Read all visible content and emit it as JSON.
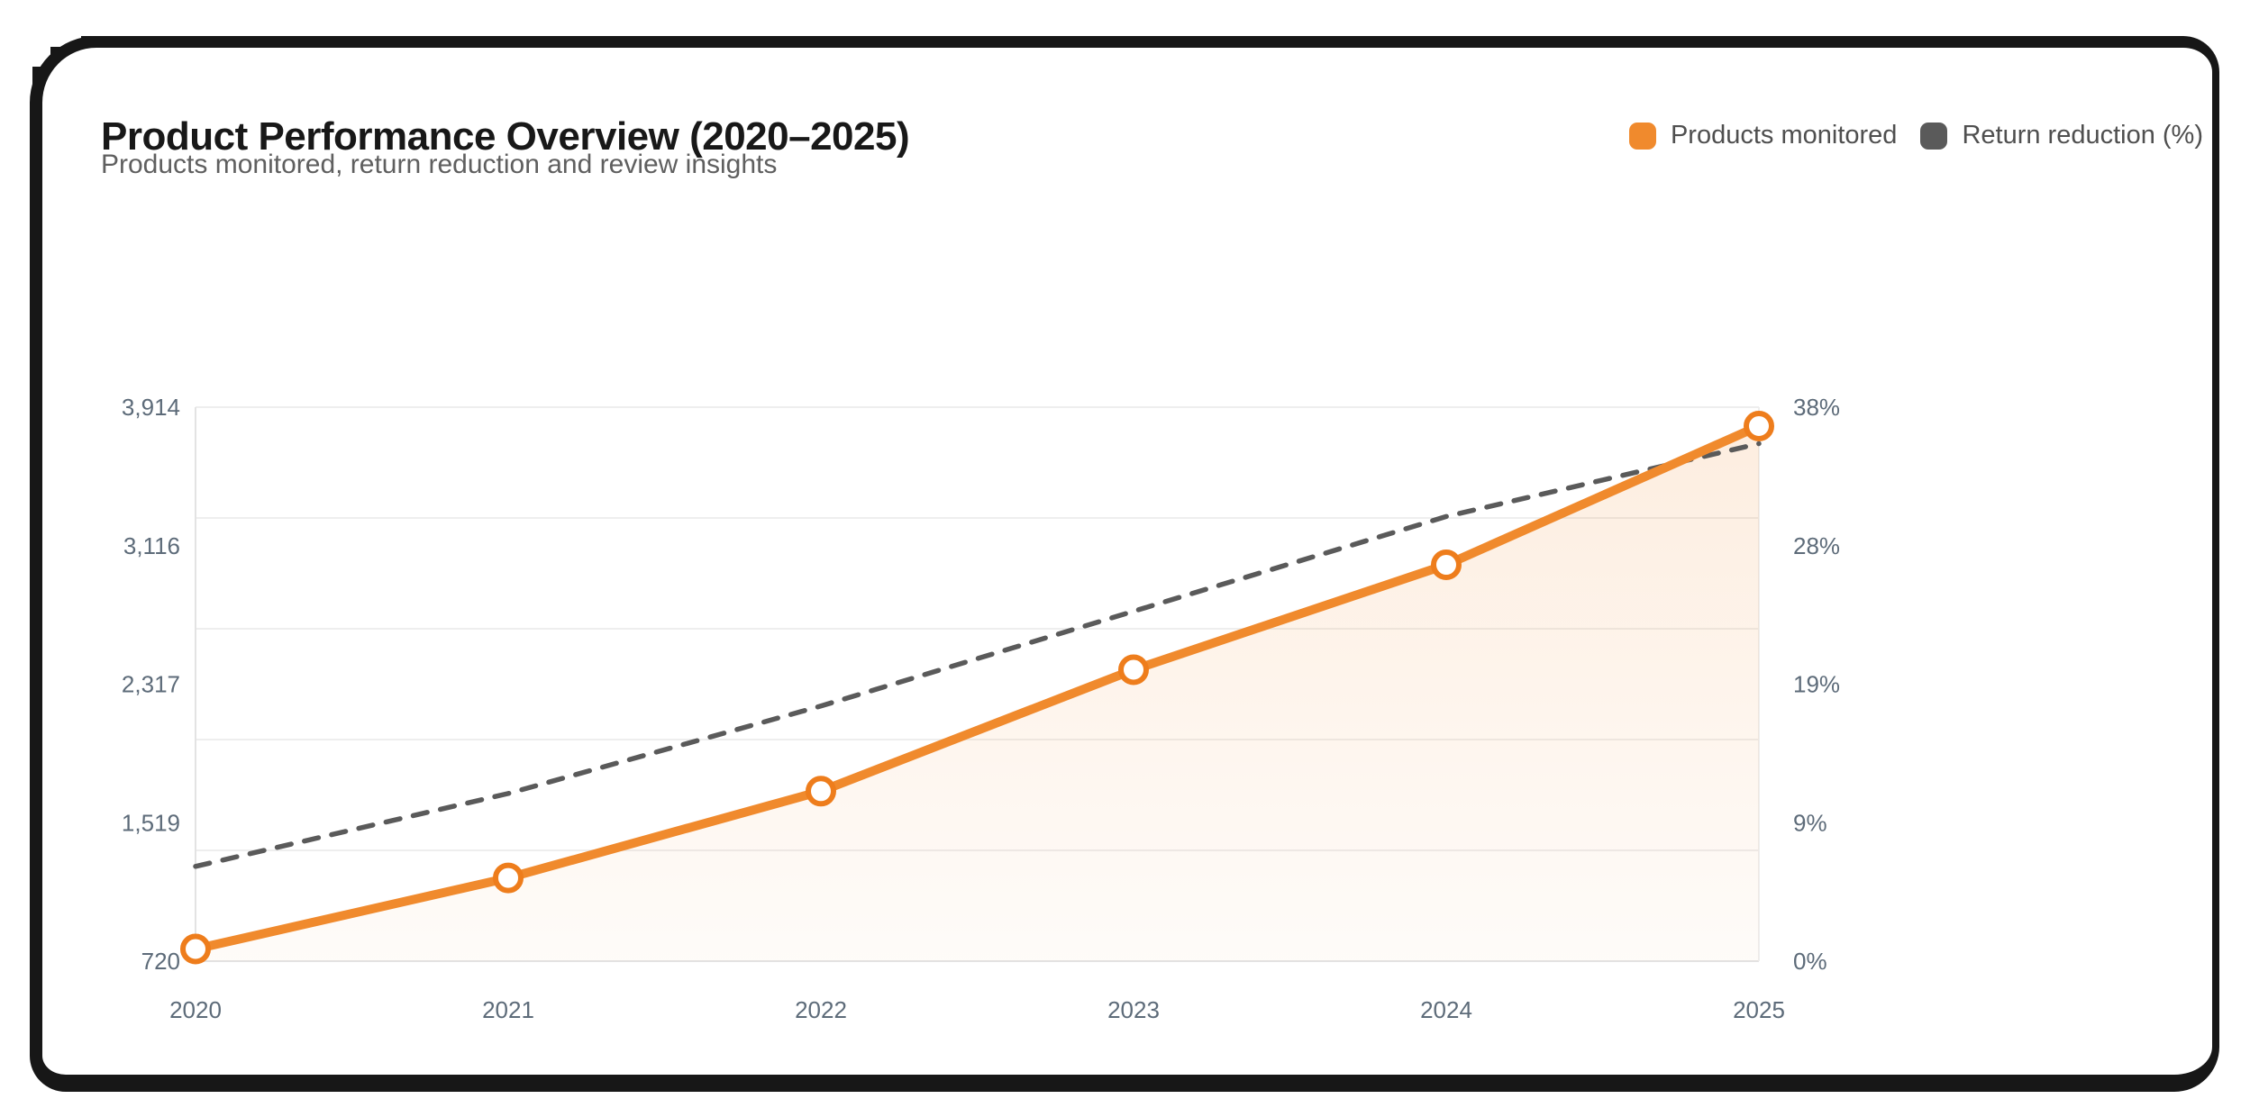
{
  "header": {
    "title": "Product Performance Overview (2020–2025)",
    "subtitle": "Products monitored, return reduction and review insights"
  },
  "chart_data": {
    "type": "line",
    "title": "Product Performance Overview (2020–2025)",
    "subtitle": "Products monitored, return reduction and review insights",
    "categories": [
      "2020",
      "2021",
      "2022",
      "2023",
      "2024",
      "2025"
    ],
    "series": [
      {
        "name": "Products monitored",
        "axis": "left",
        "color": "#F08A2D",
        "marker_stroke": "#EE7D1C",
        "line_style": "solid",
        "marker": "circle",
        "values": [
          790,
          1200,
          1700,
          2400,
          3005,
          3805
        ]
      },
      {
        "name": "Return reduction (%)",
        "axis": "right",
        "color": "#5A5A5A",
        "line_style": "dashed",
        "marker": "none",
        "values": [
          6.5,
          11.5,
          17.5,
          24,
          30.5,
          35.5
        ]
      }
    ],
    "y_left": {
      "tick_labels_top_to_bottom": [
        "3,914",
        "3,116",
        "2,317",
        "1,519",
        "720"
      ],
      "min": 720,
      "max": 3914
    },
    "y_right": {
      "tick_labels_top_to_bottom": [
        "38%",
        "28%",
        "19%",
        "9%",
        "0%"
      ],
      "min": 0,
      "max": 38
    },
    "legend_position": "top-right",
    "grid": {
      "horizontal_lines": 6,
      "grid_on": true
    },
    "colors": {
      "gridline": "#eeeeee",
      "axis_line": "#e3e3e3",
      "tick_text": "#5d6b79",
      "area_fill": "#F08A2D"
    }
  }
}
